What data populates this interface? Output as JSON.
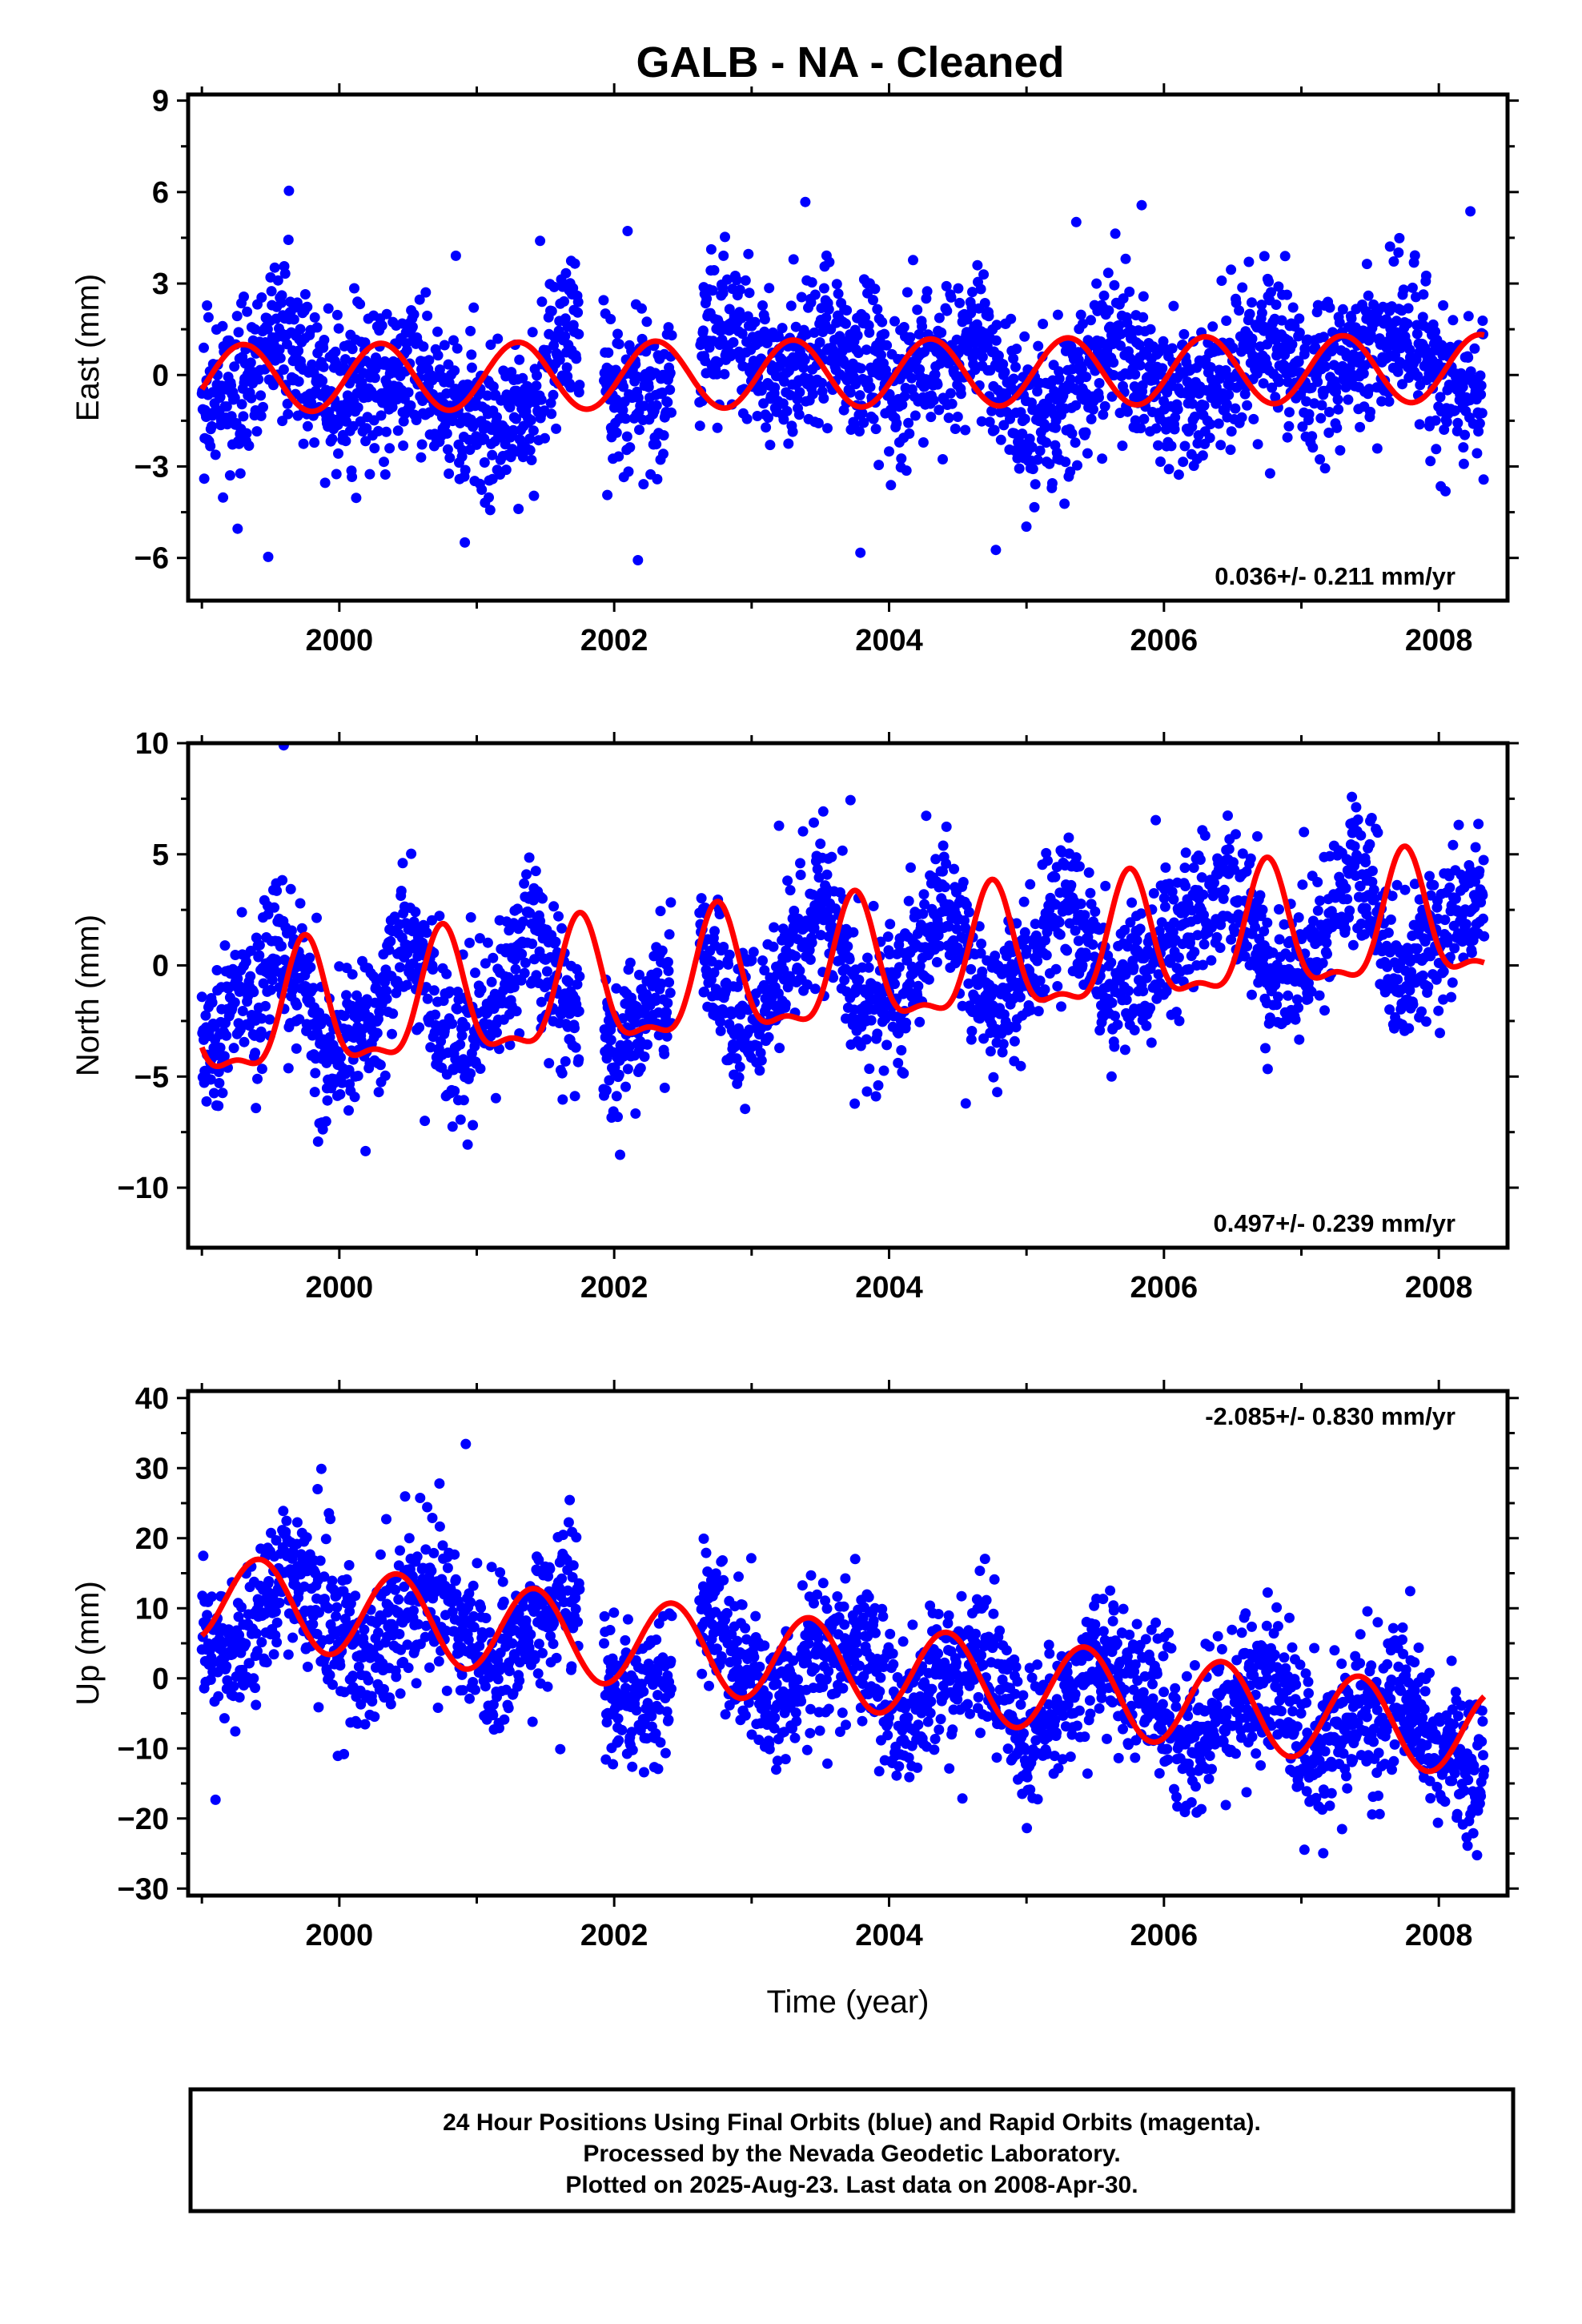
{
  "figure": {
    "title": "GALB  - NA - Cleaned",
    "footer": [
      "24 Hour Positions Using Final Orbits (blue) and Rapid Orbits (magenta).",
      "Processed by the Nevada Geodetic Laboratory.",
      "Plotted on 2025-Aug-23. Last data on 2008-Apr-30."
    ]
  },
  "chart_data": [
    {
      "type": "scatter",
      "title": "GALB  - NA - Cleaned",
      "xlabel": "",
      "ylabel": "East (mm)",
      "xlim": [
        1998.9,
        2008.5
      ],
      "ylim": [
        -7.4,
        9.2
      ],
      "x_ticks": [
        2000,
        2002,
        2004,
        2006,
        2008
      ],
      "x_minor_ticks": [
        1999,
        2001,
        2003,
        2005,
        2007
      ],
      "y_ticks": [
        -6,
        -3,
        0,
        3,
        6,
        9
      ],
      "trend_text": "0.036+/- 0.211 mm/yr",
      "trend_position": "bottom-right",
      "grid": false,
      "data_span": [
        1999.0,
        2008.33
      ],
      "series": [
        {
          "name": "24 Hour Positions Using Final Orbits (blue)",
          "kind": "points",
          "color": "#0000ff",
          "x": [
            1999.0,
            1999.3,
            1999.6,
            1999.9,
            2000.2,
            2000.5,
            2000.8,
            2001.1,
            2001.4,
            2001.7,
            2002.0,
            2002.3,
            2002.6,
            2002.9,
            2003.2,
            2003.5,
            2003.8,
            2004.1,
            2004.4,
            2004.7,
            2005.0,
            2005.3,
            2005.6,
            2005.9,
            2006.2,
            2006.5,
            2006.8,
            2007.1,
            2007.4,
            2007.7,
            2008.0,
            2008.3
          ],
          "y": [
            -0.6,
            -0.7,
            1.8,
            -0.8,
            -0.5,
            0.2,
            -1.2,
            -1.6,
            -1.0,
            1.9,
            -0.5,
            -1.0,
            1.1,
            1.2,
            0.0,
            1.2,
            0.5,
            -0.3,
            0.6,
            1.0,
            -1.8,
            -0.8,
            1.4,
            -0.5,
            -1.2,
            0.5,
            1.3,
            -0.3,
            0.2,
            1.6,
            -0.2,
            -0.6
          ]
        },
        {
          "name": "Rapid Orbits (magenta)",
          "kind": "points",
          "color": "#ff00ff",
          "x": [],
          "y": []
        },
        {
          "name": "model",
          "kind": "curve",
          "color": "#ff0000",
          "model": {
            "offset": 0.05,
            "rate": 0.036,
            "t0": 2003.6,
            "annual_sin": 1.05,
            "annual_cos": -0.35,
            "semiannual_sin": 0.0,
            "semiannual_cos": 0.0
          }
        }
      ]
    },
    {
      "type": "scatter",
      "xlabel": "",
      "ylabel": "North (mm)",
      "xlim": [
        1998.9,
        2008.5
      ],
      "ylim": [
        -12.7,
        10.0
      ],
      "x_ticks": [
        2000,
        2002,
        2004,
        2006,
        2008
      ],
      "x_minor_ticks": [
        1999,
        2001,
        2003,
        2005,
        2007
      ],
      "y_ticks": [
        -10,
        -5,
        0,
        5,
        10
      ],
      "trend_text": "0.497+/- 0.239 mm/yr",
      "trend_position": "bottom-right",
      "grid": false,
      "data_span": [
        1999.0,
        2008.33
      ],
      "series": [
        {
          "name": "24 Hour Positions Using Final Orbits (blue)",
          "kind": "points",
          "color": "#0000ff",
          "x": [
            1999.0,
            1999.3,
            1999.6,
            1999.9,
            2000.2,
            2000.5,
            2000.8,
            2001.1,
            2001.4,
            2001.7,
            2002.0,
            2002.3,
            2002.6,
            2002.9,
            2003.2,
            2003.5,
            2003.8,
            2004.1,
            2004.4,
            2004.7,
            2005.0,
            2005.3,
            2005.6,
            2005.9,
            2006.2,
            2006.5,
            2006.8,
            2007.1,
            2007.4,
            2007.7,
            2008.0,
            2008.3
          ],
          "y": [
            -4.0,
            -1.5,
            0.8,
            -4.2,
            -3.0,
            1.5,
            -3.8,
            -2.2,
            2.0,
            -2.5,
            -4.0,
            -1.5,
            1.2,
            -3.0,
            -1.2,
            3.0,
            -2.2,
            -0.8,
            3.2,
            -1.8,
            -0.4,
            3.6,
            -1.2,
            0.2,
            2.0,
            4.0,
            -1.0,
            0.8,
            4.5,
            -0.5,
            1.2,
            3.0
          ]
        },
        {
          "name": "Rapid Orbits (magenta)",
          "kind": "points",
          "color": "#ff00ff",
          "x": [],
          "y": []
        },
        {
          "name": "model",
          "kind": "curve",
          "color": "#ff0000",
          "model": {
            "offset": -0.4,
            "rate": 0.497,
            "t0": 2003.6,
            "annual_sin": -2.7,
            "annual_cos": 0.0,
            "semiannual_sin": 0.0,
            "semiannual_cos": -1.0
          }
        }
      ]
    },
    {
      "type": "scatter",
      "xlabel": "Time (year)",
      "ylabel": "Up (mm)",
      "xlim": [
        1998.9,
        2008.5
      ],
      "ylim": [
        -31,
        41
      ],
      "x_ticks": [
        2000,
        2002,
        2004,
        2006,
        2008
      ],
      "x_minor_ticks": [
        1999,
        2001,
        2003,
        2005,
        2007
      ],
      "y_ticks": [
        -30,
        -20,
        -10,
        0,
        10,
        20,
        30,
        40
      ],
      "trend_text": "-2.085+/- 0.830 mm/yr",
      "trend_position": "top-right",
      "grid": false,
      "data_span": [
        1999.0,
        2008.33
      ],
      "series": [
        {
          "name": "24 Hour Positions Using Final Orbits (blue)",
          "kind": "points",
          "color": "#0000ff",
          "x": [
            1999.0,
            1999.3,
            1999.6,
            1999.9,
            2000.2,
            2000.5,
            2000.8,
            2001.1,
            2001.4,
            2001.7,
            2002.0,
            2002.3,
            2002.6,
            2002.9,
            2003.2,
            2003.5,
            2003.8,
            2004.1,
            2004.4,
            2004.7,
            2005.0,
            2005.3,
            2005.6,
            2005.9,
            2006.2,
            2006.5,
            2006.8,
            2007.1,
            2007.4,
            2007.7,
            2008.0,
            2008.3
          ],
          "y": [
            7.0,
            4.0,
            16.0,
            8.0,
            2.0,
            12.0,
            11.0,
            0.0,
            8.0,
            12.0,
            -3.0,
            -1.0,
            10.0,
            3.0,
            -5.0,
            5.0,
            4.0,
            -7.0,
            1.0,
            3.0,
            -9.0,
            -2.0,
            4.0,
            -3.0,
            -11.0,
            -3.0,
            1.0,
            -12.0,
            -6.0,
            -2.0,
            -10.0,
            -15.0
          ]
        },
        {
          "name": "Rapid Orbits (magenta)",
          "kind": "points",
          "color": "#ff00ff",
          "x": [],
          "y": []
        },
        {
          "name": "model",
          "kind": "curve",
          "color": "#ff0000",
          "model": {
            "offset": 2.0,
            "rate": -2.085,
            "t0": 2003.6,
            "annual_sin": 3.0,
            "annual_cos": -5.5,
            "semiannual_sin": 0.0,
            "semiannual_cos": 0.0
          }
        }
      ]
    }
  ]
}
